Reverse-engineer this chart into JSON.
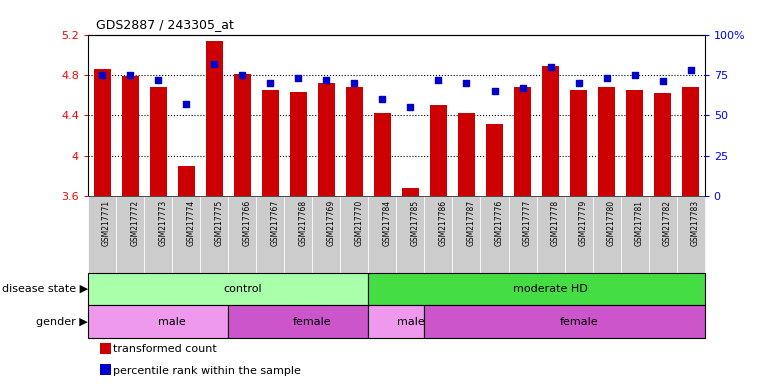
{
  "title": "GDS2887 / 243305_at",
  "samples": [
    "GSM217771",
    "GSM217772",
    "GSM217773",
    "GSM217774",
    "GSM217775",
    "GSM217766",
    "GSM217767",
    "GSM217768",
    "GSM217769",
    "GSM217770",
    "GSM217784",
    "GSM217785",
    "GSM217786",
    "GSM217787",
    "GSM217776",
    "GSM217777",
    "GSM217778",
    "GSM217779",
    "GSM217780",
    "GSM217781",
    "GSM217782",
    "GSM217783"
  ],
  "bar_values": [
    4.86,
    4.79,
    4.68,
    3.9,
    5.14,
    4.81,
    4.65,
    4.63,
    4.72,
    4.68,
    4.42,
    3.68,
    4.5,
    4.42,
    4.31,
    4.68,
    4.89,
    4.65,
    4.68,
    4.65,
    4.62,
    4.68
  ],
  "percentile_values": [
    75,
    75,
    72,
    57,
    82,
    75,
    70,
    73,
    72,
    70,
    60,
    55,
    72,
    70,
    65,
    67,
    80,
    70,
    73,
    75,
    71,
    78
  ],
  "ylim": [
    3.6,
    5.2
  ],
  "yticks": [
    3.6,
    4.0,
    4.4,
    4.8,
    5.2
  ],
  "ytick_labels": [
    "3.6",
    "4",
    "4.4",
    "4.8",
    "5.2"
  ],
  "right_yticks": [
    0,
    25,
    50,
    75,
    100
  ],
  "right_ytick_labels": [
    "0",
    "25",
    "50",
    "75",
    "100%"
  ],
  "dotted_yvals": [
    4.0,
    4.4,
    4.8
  ],
  "bar_color": "#cc0000",
  "dot_color": "#0000cc",
  "disease_state_groups": [
    {
      "label": "control",
      "start": 0,
      "end": 10,
      "color": "#aaffaa"
    },
    {
      "label": "moderate HD",
      "start": 10,
      "end": 22,
      "color": "#44dd44"
    }
  ],
  "gender_groups": [
    {
      "label": "male",
      "start": 0,
      "end": 5,
      "color": "#ee99ee"
    },
    {
      "label": "female",
      "start": 5,
      "end": 10,
      "color": "#cc55cc"
    },
    {
      "label": "male",
      "start": 10,
      "end": 12,
      "color": "#ee99ee"
    },
    {
      "label": "female",
      "start": 12,
      "end": 22,
      "color": "#cc55cc"
    }
  ],
  "legend_items": [
    {
      "label": "transformed count",
      "color": "#cc0000"
    },
    {
      "label": "percentile rank within the sample",
      "color": "#0000cc"
    }
  ],
  "disease_label": "disease state",
  "gender_label": "gender",
  "xtick_bg": "#dddddd"
}
